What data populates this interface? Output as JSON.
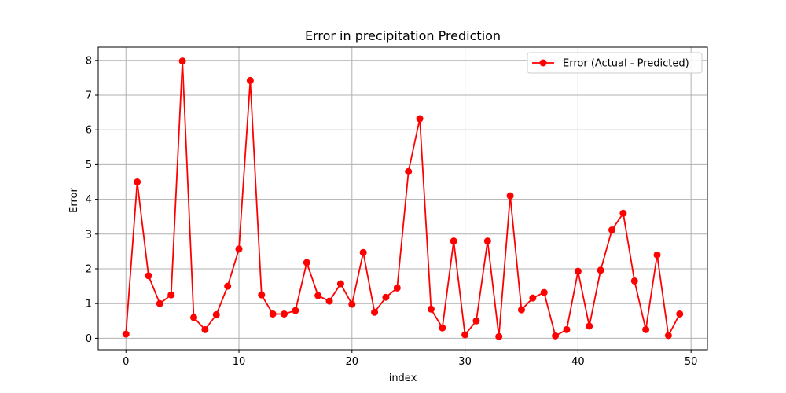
{
  "chart_data": {
    "type": "line",
    "title": "Error in precipitation Prediction",
    "xlabel": "index",
    "ylabel": "Error",
    "xlim": [
      -2.45,
      51.45
    ],
    "ylim": [
      -0.33,
      8.38
    ],
    "xticks": [
      0,
      10,
      20,
      30,
      40,
      50
    ],
    "yticks": [
      0,
      1,
      2,
      3,
      4,
      5,
      6,
      7,
      8
    ],
    "grid": true,
    "legend_position": "top-right",
    "series": [
      {
        "name": "Error (Actual - Predicted)",
        "color": "#ff0000",
        "marker": "circle",
        "x": [
          0,
          1,
          2,
          3,
          4,
          5,
          6,
          7,
          8,
          9,
          10,
          11,
          12,
          13,
          14,
          15,
          16,
          17,
          18,
          19,
          20,
          21,
          22,
          23,
          24,
          25,
          26,
          27,
          28,
          29,
          30,
          31,
          32,
          33,
          34,
          35,
          36,
          37,
          38,
          39,
          40,
          41,
          42,
          43,
          44,
          45,
          46,
          47,
          48,
          49
        ],
        "values": [
          0.12,
          4.5,
          1.8,
          1.0,
          1.25,
          7.98,
          0.6,
          0.25,
          0.68,
          1.5,
          2.57,
          7.42,
          1.25,
          0.7,
          0.7,
          0.8,
          2.18,
          1.23,
          1.07,
          1.57,
          0.98,
          2.47,
          0.75,
          1.18,
          1.45,
          4.8,
          6.32,
          0.84,
          0.3,
          2.8,
          0.1,
          0.5,
          2.8,
          0.05,
          4.1,
          0.82,
          1.16,
          1.32,
          0.07,
          0.25,
          1.93,
          0.35,
          1.96,
          3.12,
          3.6,
          1.65,
          0.25,
          2.4,
          0.08,
          0.7
        ]
      }
    ]
  }
}
